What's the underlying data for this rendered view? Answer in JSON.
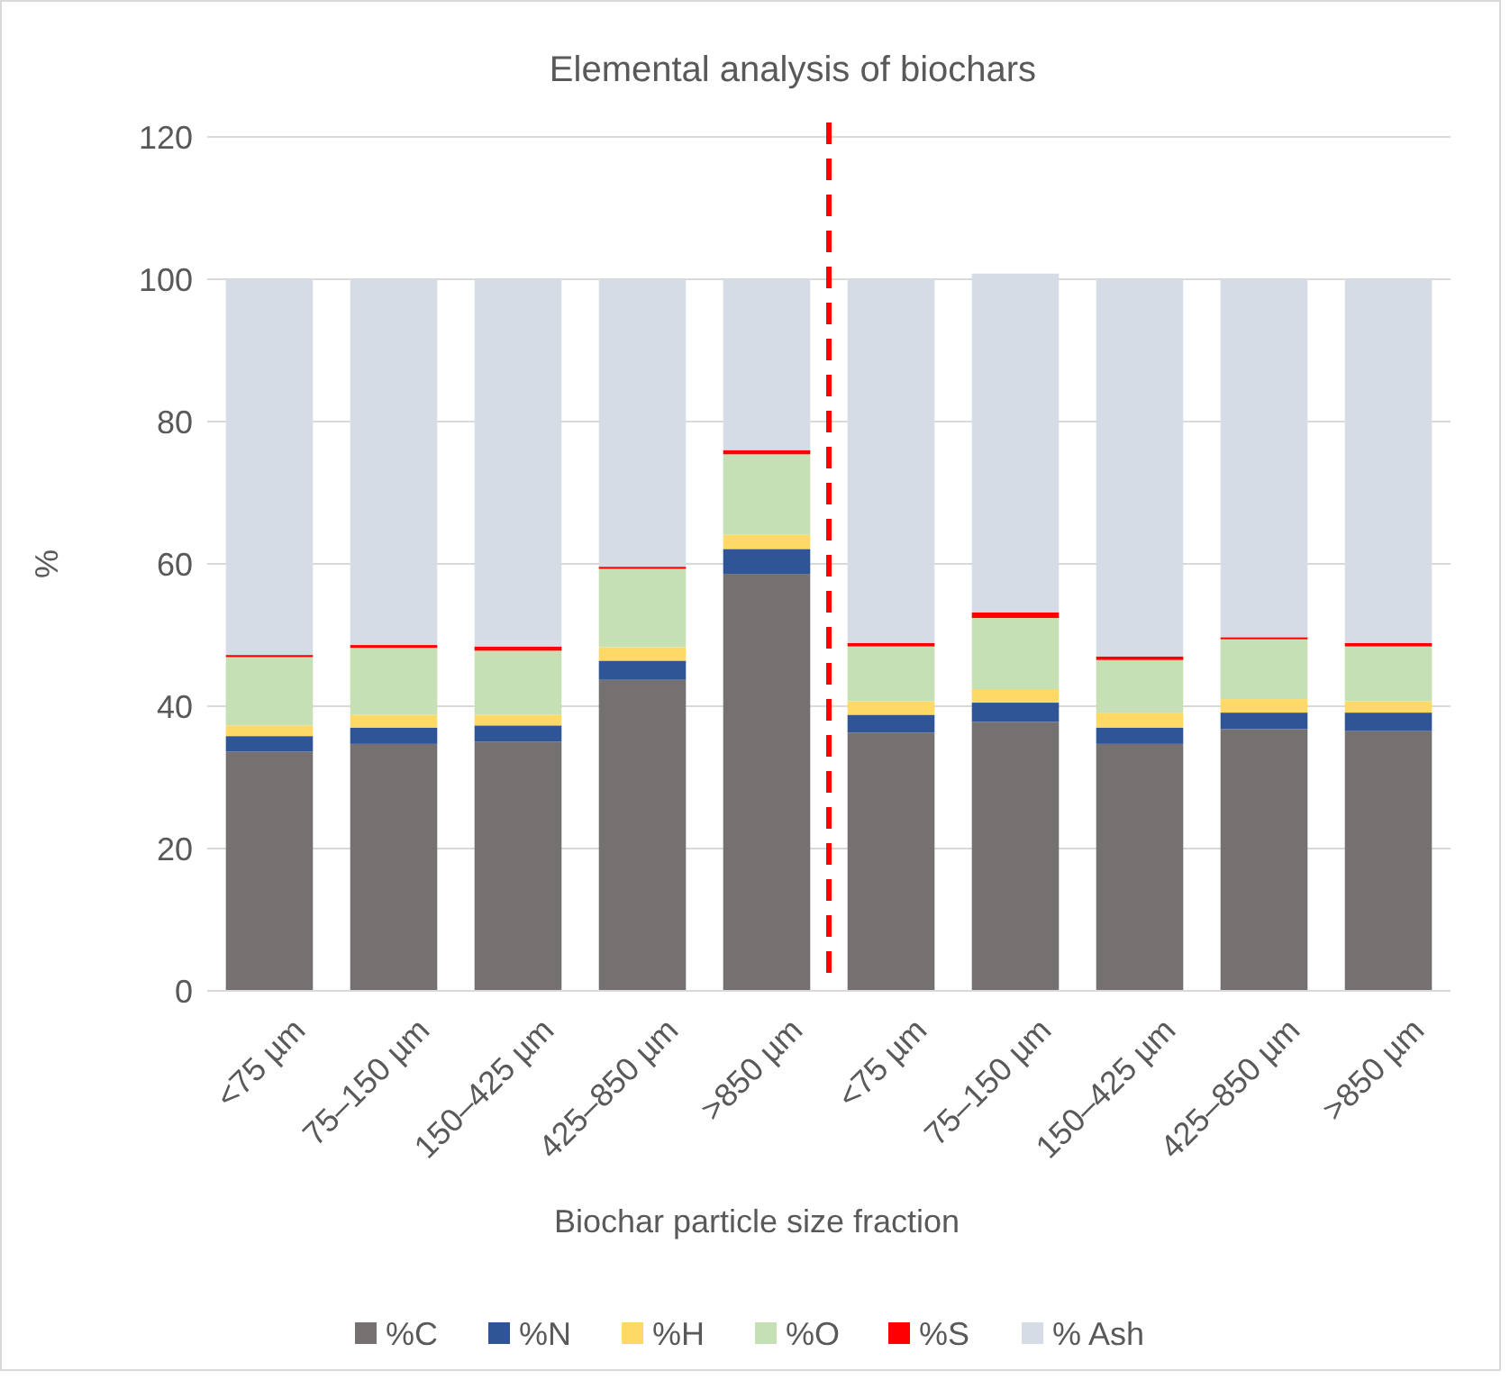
{
  "chart_data": {
    "type": "bar",
    "title": "Elemental analysis of biochars",
    "xlabel": "Biochar particle size fraction",
    "ylabel": "%",
    "categories": [
      "<75 µm",
      "75–150 µm",
      "150–425 µm",
      "425–850 µm",
      ">850 µm",
      "<75 µm",
      "75–150 µm",
      "150–425 µm",
      "425–850 µm",
      ">850 µm"
    ],
    "series": [
      {
        "name": "%C",
        "color": "#767171",
        "values": [
          33.6,
          34.7,
          35.0,
          43.7,
          58.6,
          36.3,
          37.8,
          34.7,
          36.8,
          36.5
        ]
      },
      {
        "name": "%N",
        "color": "#2f5597",
        "values": [
          2.2,
          2.3,
          2.3,
          2.7,
          3.5,
          2.5,
          2.7,
          2.3,
          2.3,
          2.6
        ]
      },
      {
        "name": "%H",
        "color": "#ffd966",
        "values": [
          1.5,
          1.8,
          1.5,
          1.9,
          2.0,
          1.9,
          1.9,
          2.1,
          1.9,
          1.6
        ]
      },
      {
        "name": "%O",
        "color": "#c5e0b4",
        "values": [
          9.6,
          9.4,
          9.0,
          11.0,
          11.3,
          7.7,
          10.0,
          7.4,
          8.4,
          7.7
        ]
      },
      {
        "name": "%S",
        "color": "#ff0000",
        "values": [
          0.3,
          0.4,
          0.6,
          0.3,
          0.6,
          0.5,
          0.8,
          0.5,
          0.3,
          0.5
        ]
      },
      {
        "name": "% Ash",
        "color": "#d6dce5",
        "values": [
          52.8,
          51.4,
          51.6,
          40.4,
          24.0,
          51.1,
          47.6,
          53.0,
          50.3,
          51.1
        ]
      }
    ],
    "stacked": true,
    "ylim": [
      0,
      120
    ],
    "yticks": [
      0,
      20,
      40,
      60,
      80,
      100,
      120
    ],
    "grid": "y",
    "legend": "bottom"
  }
}
